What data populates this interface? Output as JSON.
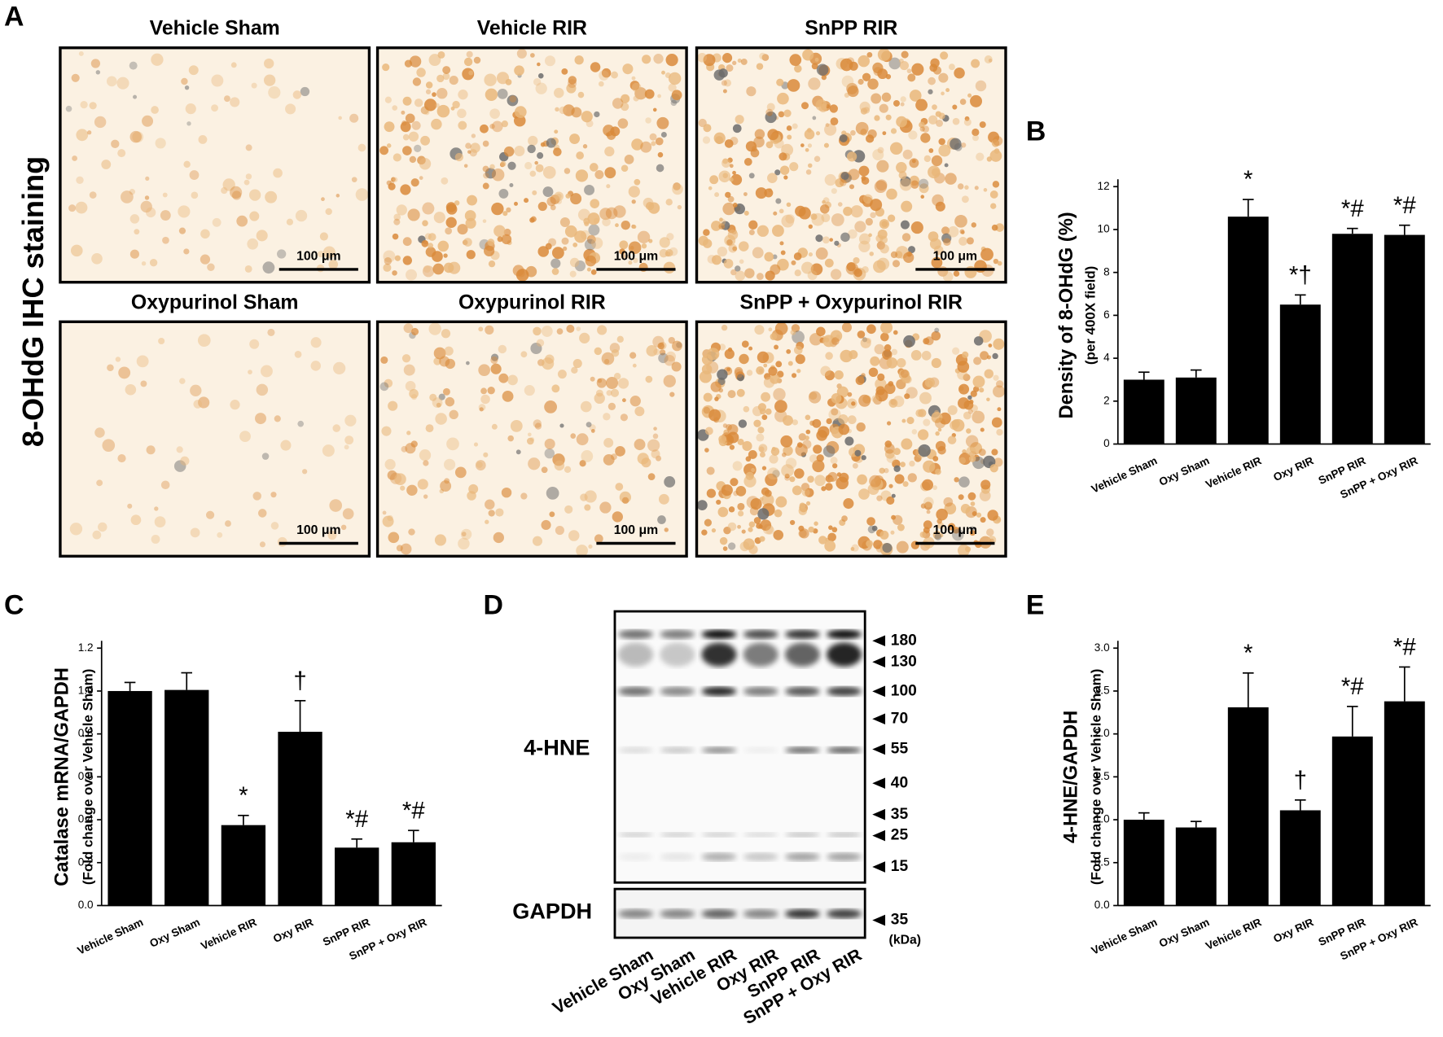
{
  "panel_a": {
    "letter": "A",
    "side_label": "8-OHdG IHC staining",
    "images": [
      {
        "title": "Vehicle Sham",
        "scale": "100 μm"
      },
      {
        "title": "Vehicle RIR",
        "scale": "100 μm"
      },
      {
        "title": "SnPP RIR",
        "scale": "100 μm"
      },
      {
        "title": "Oxypurinol Sham",
        "scale": "100 μm"
      },
      {
        "title": "Oxypurinol RIR",
        "scale": "100 μm"
      },
      {
        "title": "SnPP + Oxypurinol RIR",
        "scale": "100 μm"
      }
    ]
  },
  "chart_data": [
    {
      "type": "bar",
      "letter": "B",
      "ylabel": [
        "Density of 8-OHdG (%)",
        "(per 400X field)"
      ],
      "categories": [
        "Vehicle Sham",
        "Oxy Sham",
        "Vehicle RIR",
        "Oxy RIR",
        "SnPP RIR",
        "SnPP + Oxy RIR"
      ],
      "values": [
        3.0,
        3.1,
        10.6,
        6.5,
        9.8,
        9.75
      ],
      "errors": [
        0.35,
        0.35,
        0.8,
        0.45,
        0.25,
        0.45
      ],
      "annotations": [
        null,
        null,
        "*",
        "*†",
        "*#",
        "*#"
      ],
      "color": "#000000",
      "ylim": [
        0,
        12
      ],
      "yticks": [
        0,
        2,
        4,
        6,
        8,
        10,
        12
      ]
    },
    {
      "type": "bar",
      "letter": "C",
      "ylabel": [
        "Catalase mRNA/GAPDH",
        "(Fold change over Vehicle Sham)"
      ],
      "categories": [
        "Vehicle Sham",
        "Oxy Sham",
        "Vehicle RIR",
        "Oxy RIR",
        "SnPP RIR",
        "SnPP + Oxy RIR"
      ],
      "values": [
        1.0,
        1.005,
        0.375,
        0.81,
        0.27,
        0.295
      ],
      "errors": [
        0.04,
        0.08,
        0.045,
        0.145,
        0.04,
        0.055
      ],
      "annotations": [
        null,
        null,
        "*",
        "†",
        "*#",
        "*#"
      ],
      "color": "#000000",
      "ylim": [
        0,
        1.2
      ],
      "yticks": [
        {
          "value": 0,
          "label": "0.0"
        },
        0.2,
        0.4,
        0.6,
        0.8,
        {
          "value": 1,
          "label": "1.0"
        },
        1.2
      ]
    },
    {
      "type": "bar",
      "letter": "E",
      "ylabel": [
        "4-HNE/GAPDH",
        "(Fold change over Vehicle Sham)"
      ],
      "categories": [
        "Vehicle Sham",
        "Oxy Sham",
        "Vehicle RIR",
        "Oxy RIR",
        "SnPP RIR",
        "SnPP + Oxy RIR"
      ],
      "values": [
        1.0,
        0.91,
        2.31,
        1.11,
        1.97,
        2.38
      ],
      "errors": [
        0.08,
        0.07,
        0.4,
        0.12,
        0.35,
        0.4
      ],
      "annotations": [
        null,
        null,
        "*",
        "†",
        "*#",
        "*#"
      ],
      "color": "#000000",
      "ylim": [
        0,
        3
      ],
      "yticks": [
        {
          "value": 0,
          "label": "0.0"
        },
        0.5,
        {
          "value": 1,
          "label": "1.0"
        },
        1.5,
        {
          "value": 2,
          "label": "2.0"
        },
        2.5,
        {
          "value": 3,
          "label": "3.0"
        }
      ]
    }
  ],
  "panel_d": {
    "letter": "D",
    "blot_labels": [
      "4-HNE",
      "GAPDH"
    ],
    "markers": [
      "180",
      "130",
      "100",
      "70",
      "55",
      "40",
      "35",
      "25",
      "15"
    ],
    "gapdh_marker": "35",
    "unit": "(kDa)",
    "lanes": [
      "Vehicle Sham",
      "Oxy Sham",
      "Vehicle RIR",
      "Oxy RIR",
      "SnPP RIR",
      "SnPP + Oxy RIR"
    ]
  }
}
